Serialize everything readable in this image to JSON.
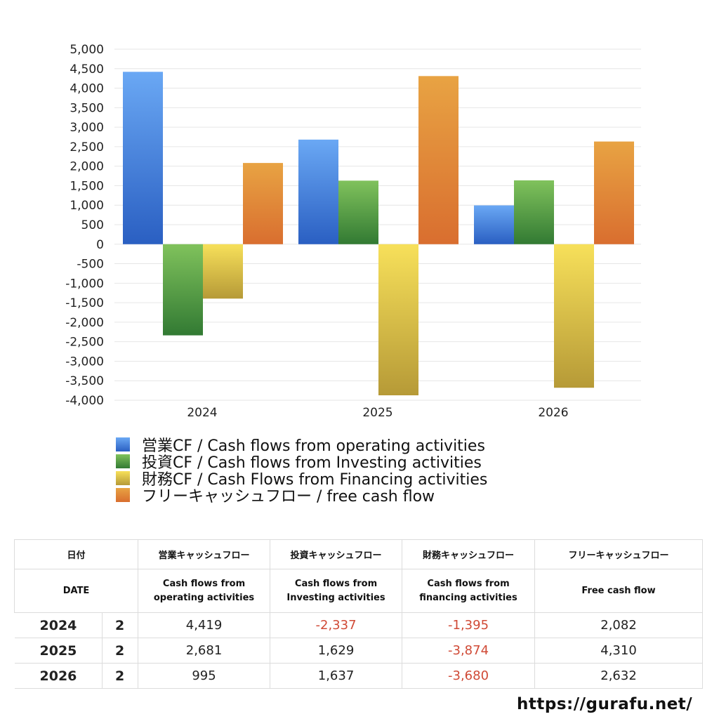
{
  "chart_data": {
    "type": "bar",
    "categories": [
      "2024",
      "2025",
      "2026"
    ],
    "series": [
      {
        "name": "営業CF / Cash flows from operating activities",
        "values": [
          4419,
          2681,
          995
        ],
        "color": "#3f7fe0"
      },
      {
        "name": "投資CF / Cash flows from Investing activities",
        "values": [
          -2337,
          1629,
          1637
        ],
        "color": "#4e9d3c"
      },
      {
        "name": "財務CF / Cash Flows from Financing activities",
        "values": [
          -1395,
          -3874,
          -3680
        ],
        "color": "#e6cf4c"
      },
      {
        "name": "フリーキャッシュフロー / free cash flow",
        "values": [
          2082,
          4310,
          2632
        ],
        "color": "#e28a38"
      }
    ],
    "ylim": [
      -4000,
      5000
    ],
    "yticks": [
      "5,000",
      "4,500",
      "4,000",
      "3,500",
      "3,000",
      "2,500",
      "2,000",
      "1,500",
      "1,000",
      "500",
      "0",
      "-500",
      "-1,000",
      "-1,500",
      "-2,000",
      "-2,500",
      "-3,000",
      "-3,500",
      "-4,000"
    ],
    "grid": true,
    "legend_position": "bottom"
  },
  "table": {
    "header1": [
      "日付",
      "",
      "営業キャッシュフロー",
      "投資キャッシュフロー",
      "財務キャッシュフロー",
      "フリーキャッシュフロー"
    ],
    "header2": [
      "DATE",
      "",
      [
        "Cash flows from",
        "operating activities"
      ],
      [
        "Cash flows from",
        "Investing activities"
      ],
      [
        "Cash flows from",
        "financing activities"
      ],
      [
        "Free cash flow"
      ]
    ],
    "rows": [
      {
        "year": "2024",
        "q": "2",
        "values": [
          "4,419",
          "-2,337",
          "-1,395",
          "2,082"
        ]
      },
      {
        "year": "2025",
        "q": "2",
        "values": [
          "2,681",
          "1,629",
          "-3,874",
          "4,310"
        ]
      },
      {
        "year": "2026",
        "q": "2",
        "values": [
          "995",
          "1,637",
          "-3,680",
          "2,632"
        ]
      }
    ]
  },
  "footer": {
    "url": "https://gurafu.net/"
  }
}
